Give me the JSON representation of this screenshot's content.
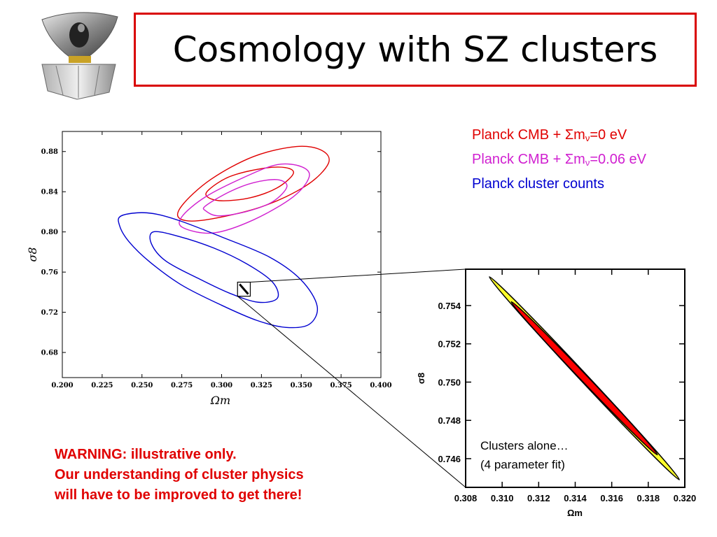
{
  "slide": {
    "title": "Cosmology with SZ clusters",
    "logo_icon": "planck-satellite-icon"
  },
  "legend": {
    "entries": [
      {
        "text_before": "Planck CMB + Σm",
        "sub": "ν",
        "text_after": "=0 eV",
        "color": "#e00000"
      },
      {
        "text_before": "Planck CMB + Σm",
        "sub": "ν",
        "text_after": "=0.06 eV",
        "color": "#d020d0"
      },
      {
        "text_before": "Planck cluster counts",
        "sub": "",
        "text_after": "",
        "color": "#0000d0"
      }
    ]
  },
  "warning": {
    "line1": "WARNING: illustrative only.",
    "line2": "Our understanding of cluster physics",
    "line3": "will have to be improved to get there!"
  },
  "inset_note": {
    "line1": "Clusters alone…",
    "line2": "(4 parameter fit)"
  },
  "chart_data": [
    {
      "type": "contour",
      "xlabel": "Ωm",
      "ylabel": "σ8",
      "xlim": [
        0.2,
        0.4
      ],
      "ylim": [
        0.655,
        0.9
      ],
      "xticks": [
        "0.200",
        "0.225",
        "0.250",
        "0.275",
        "0.300",
        "0.325",
        "0.350",
        "0.375",
        "0.400"
      ],
      "yticks": [
        "0.68",
        "0.72",
        "0.76",
        "0.80",
        "0.84",
        "0.88"
      ],
      "series": [
        {
          "name": "Planck CMB + Σmν=0 eV",
          "color": "#e00000",
          "contours": [
            {
              "level": "95%",
              "points": [
                [
                  0.275,
                  0.826
                ],
                [
                  0.293,
                  0.852
                ],
                [
                  0.32,
                  0.875
                ],
                [
                  0.347,
                  0.885
                ],
                [
                  0.363,
                  0.881
                ],
                [
                  0.367,
                  0.868
                ],
                [
                  0.353,
                  0.846
                ],
                [
                  0.325,
                  0.825
                ],
                [
                  0.29,
                  0.812
                ],
                [
                  0.274,
                  0.813
                ]
              ]
            },
            {
              "level": "68%",
              "points": [
                [
                  0.292,
                  0.842
                ],
                [
                  0.305,
                  0.855
                ],
                [
                  0.325,
                  0.863
                ],
                [
                  0.34,
                  0.864
                ],
                [
                  0.345,
                  0.858
                ],
                [
                  0.335,
                  0.844
                ],
                [
                  0.318,
                  0.834
                ],
                [
                  0.3,
                  0.831
                ],
                [
                  0.291,
                  0.835
                ]
              ]
            }
          ]
        },
        {
          "name": "Planck CMB + Σmν=0.06 eV",
          "color": "#d020d0",
          "contours": [
            {
              "level": "95%",
              "points": [
                [
                  0.275,
                  0.815
                ],
                [
                  0.29,
                  0.835
                ],
                [
                  0.315,
                  0.855
                ],
                [
                  0.335,
                  0.867
                ],
                [
                  0.35,
                  0.865
                ],
                [
                  0.355,
                  0.855
                ],
                [
                  0.345,
                  0.835
                ],
                [
                  0.32,
                  0.812
                ],
                [
                  0.295,
                  0.799
                ],
                [
                  0.276,
                  0.804
                ]
              ]
            },
            {
              "level": "68%",
              "points": [
                [
                  0.29,
                  0.826
                ],
                [
                  0.305,
                  0.84
                ],
                [
                  0.32,
                  0.849
                ],
                [
                  0.335,
                  0.852
                ],
                [
                  0.341,
                  0.845
                ],
                [
                  0.332,
                  0.83
                ],
                [
                  0.315,
                  0.82
                ],
                [
                  0.298,
                  0.816
                ],
                [
                  0.29,
                  0.821
                ]
              ]
            }
          ]
        },
        {
          "name": "Planck cluster counts",
          "color": "#0000d0",
          "contours": [
            {
              "level": "95%",
              "points": [
                [
                  0.237,
                  0.816
                ],
                [
                  0.253,
                  0.819
                ],
                [
                  0.272,
                  0.812
                ],
                [
                  0.3,
                  0.795
                ],
                [
                  0.33,
                  0.775
                ],
                [
                  0.35,
                  0.752
                ],
                [
                  0.36,
                  0.726
                ],
                [
                  0.355,
                  0.708
                ],
                [
                  0.34,
                  0.705
                ],
                [
                  0.322,
                  0.712
                ],
                [
                  0.3,
                  0.727
                ],
                [
                  0.275,
                  0.747
                ],
                [
                  0.255,
                  0.77
                ],
                [
                  0.242,
                  0.79
                ],
                [
                  0.236,
                  0.806
                ]
              ]
            },
            {
              "level": "68%",
              "points": [
                [
                  0.257,
                  0.8
                ],
                [
                  0.272,
                  0.796
                ],
                [
                  0.295,
                  0.784
                ],
                [
                  0.316,
                  0.768
                ],
                [
                  0.332,
                  0.75
                ],
                [
                  0.335,
                  0.734
                ],
                [
                  0.323,
                  0.73
                ],
                [
                  0.305,
                  0.739
                ],
                [
                  0.285,
                  0.754
                ],
                [
                  0.265,
                  0.771
                ],
                [
                  0.256,
                  0.788
                ]
              ]
            }
          ]
        }
      ],
      "zoom_box": {
        "x": [
          0.31,
          0.318
        ],
        "y": [
          0.736,
          0.75
        ]
      }
    },
    {
      "type": "contour",
      "xlabel": "Ωm",
      "ylabel": "σ8",
      "xlim": [
        0.308,
        0.32
      ],
      "ylim": [
        0.7445,
        0.7559
      ],
      "xticks": [
        "0.308",
        "0.310",
        "0.312",
        "0.314",
        "0.316",
        "0.318",
        "0.320"
      ],
      "yticks": [
        "0.746",
        "0.748",
        "0.750",
        "0.752",
        "0.754"
      ],
      "series": [
        {
          "name": "",
          "color": "#000000",
          "contours": [
            {
              "level": "95%",
              "fill": "#ffff2a",
              "center": [
                0.3145,
                0.7502
              ],
              "major_end": [
                0.3093,
                0.7555
              ],
              "minor_halfwidth": 0.00011
            },
            {
              "level": "68%",
              "fill": "#ff0000",
              "center": [
                0.3145,
                0.7502
              ],
              "major_end": [
                0.3105,
                0.7542
              ],
              "minor_halfwidth": 6e-05
            }
          ]
        }
      ]
    }
  ]
}
